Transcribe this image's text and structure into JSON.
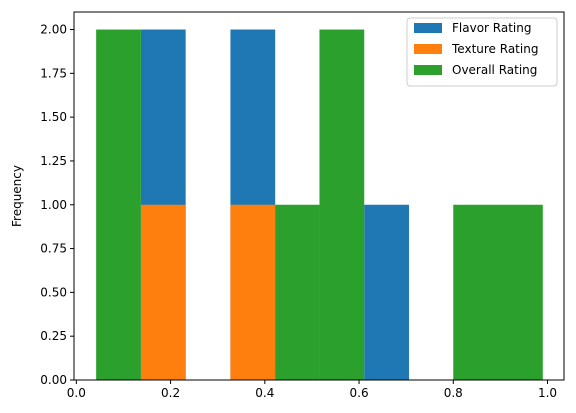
{
  "chart_data": {
    "type": "histogram",
    "ylabel": "Frequency",
    "xlim": [
      -0.005,
      1.035
    ],
    "ylim": [
      0,
      2.1
    ],
    "x_ticks": [
      0.0,
      0.2,
      0.4,
      0.6,
      0.8,
      1.0
    ],
    "x_tick_labels": [
      "0.0",
      "0.2",
      "0.4",
      "0.6",
      "0.8",
      "1.0"
    ],
    "y_ticks": [
      0.0,
      0.25,
      0.5,
      0.75,
      1.0,
      1.25,
      1.5,
      1.75,
      2.0
    ],
    "y_tick_labels": [
      "0.00",
      "0.25",
      "0.50",
      "0.75",
      "1.00",
      "1.25",
      "1.50",
      "1.75",
      "2.00"
    ],
    "grid": false,
    "legend_position": "top-right",
    "series": [
      {
        "name": "Flavor Rating",
        "color": "#1f77b4",
        "bins": [
          {
            "x0": 0.137,
            "x1": 0.232,
            "count": 2
          },
          {
            "x0": 0.327,
            "x1": 0.422,
            "count": 2
          },
          {
            "x0": 0.611,
            "x1": 0.706,
            "count": 1
          }
        ]
      },
      {
        "name": "Texture Rating",
        "color": "#ff7f0e",
        "bins": [
          {
            "x0": 0.137,
            "x1": 0.232,
            "count": 1
          },
          {
            "x0": 0.327,
            "x1": 0.422,
            "count": 1
          }
        ]
      },
      {
        "name": "Overall Rating",
        "color": "#2ca02c",
        "bins": [
          {
            "x0": 0.042,
            "x1": 0.137,
            "count": 2
          },
          {
            "x0": 0.422,
            "x1": 0.516,
            "count": 1
          },
          {
            "x0": 0.516,
            "x1": 0.611,
            "count": 2
          },
          {
            "x0": 0.8,
            "x1": 0.99,
            "count": 1
          }
        ]
      }
    ]
  }
}
